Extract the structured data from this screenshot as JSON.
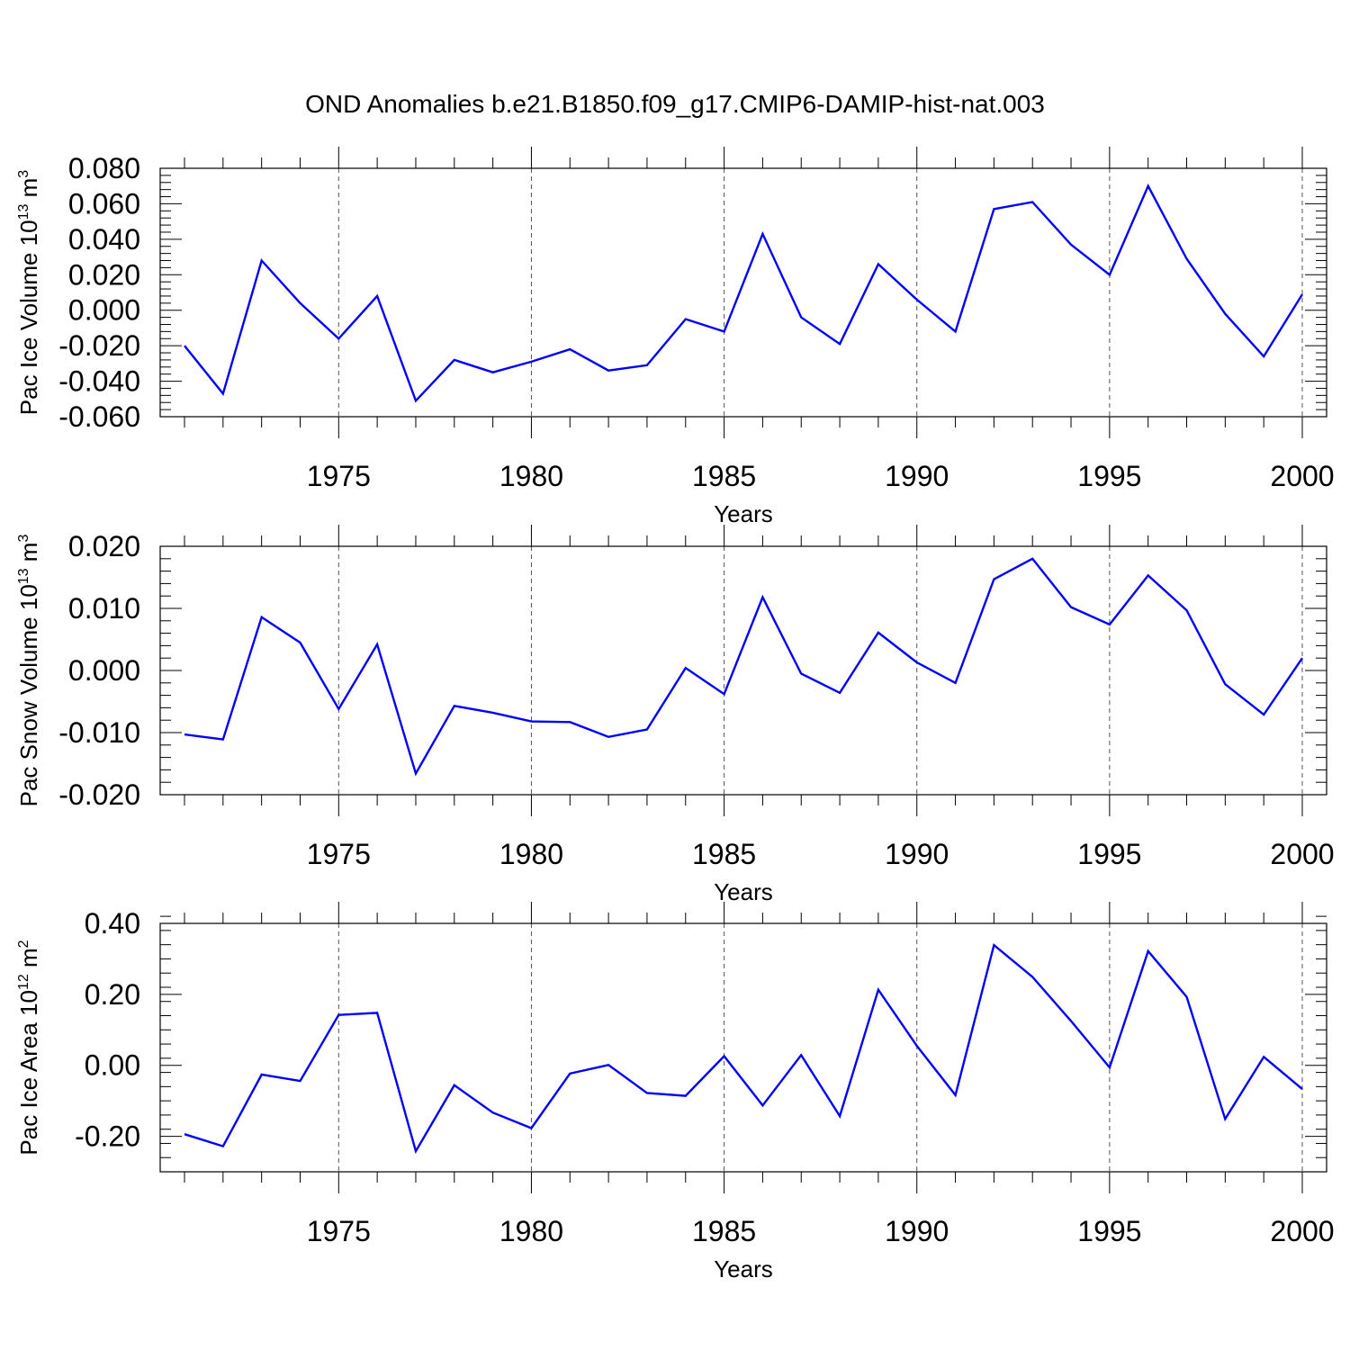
{
  "title": "OND Anomalies b.e21.B1850.f09_g17.CMIP6-DAMIP-hist-nat.003",
  "chart_data": [
    {
      "type": "line",
      "title": "OND Anomalies b.e21.B1850.f09_g17.CMIP6-DAMIP-hist-nat.003",
      "ylabel": {
        "text": "Pac Ice Volume 10",
        "exp": "13",
        "unit": " m",
        "unit_exp": "3"
      },
      "xlabel": "Years",
      "xlim": [
        1971,
        2000
      ],
      "ylim": [
        -0.06,
        0.08
      ],
      "yticks": [
        -0.06,
        -0.04,
        -0.02,
        0.0,
        0.02,
        0.04,
        0.06,
        0.08
      ],
      "ytick_labels": [
        "-0.060",
        "-0.040",
        "-0.020",
        "0.000",
        "0.020",
        "0.040",
        "0.060",
        "0.080"
      ],
      "xticks": [
        1975,
        1980,
        1985,
        1990,
        1995,
        2000
      ],
      "xtick_labels": [
        "1975",
        "1980",
        "1985",
        "1990",
        "1995",
        "2000"
      ],
      "grid": "dashed vertical at major x ticks",
      "color": "#0000ff",
      "x": [
        1971,
        1972,
        1973,
        1974,
        1975,
        1976,
        1977,
        1978,
        1979,
        1980,
        1981,
        1982,
        1983,
        1984,
        1985,
        1986,
        1987,
        1988,
        1989,
        1990,
        1991,
        1992,
        1993,
        1994,
        1995,
        1996,
        1997,
        1998,
        1999,
        2000
      ],
      "values": [
        -0.02,
        -0.047,
        0.028,
        0.004,
        -0.016,
        0.008,
        -0.051,
        -0.028,
        -0.035,
        -0.029,
        -0.022,
        -0.034,
        -0.031,
        -0.005,
        -0.012,
        0.043,
        -0.004,
        -0.019,
        0.026,
        0.006,
        -0.012,
        0.057,
        0.061,
        0.037,
        0.02,
        0.07,
        0.029,
        -0.002,
        -0.026,
        0.009
      ]
    },
    {
      "type": "line",
      "ylabel": {
        "text": "Pac Snow Volume 10",
        "exp": "13",
        "unit": " m",
        "unit_exp": "3"
      },
      "xlabel": "Years",
      "xlim": [
        1971,
        2000
      ],
      "ylim": [
        -0.02,
        0.02
      ],
      "yticks": [
        -0.02,
        -0.01,
        0.0,
        0.01,
        0.02
      ],
      "ytick_labels": [
        "-0.020",
        "-0.010",
        "0.000",
        "0.010",
        "0.020"
      ],
      "xticks": [
        1975,
        1980,
        1985,
        1990,
        1995,
        2000
      ],
      "xtick_labels": [
        "1975",
        "1980",
        "1985",
        "1990",
        "1995",
        "2000"
      ],
      "grid": "dashed vertical at major x ticks",
      "color": "#0000ff",
      "x": [
        1971,
        1972,
        1973,
        1974,
        1975,
        1976,
        1977,
        1978,
        1979,
        1980,
        1981,
        1982,
        1983,
        1984,
        1985,
        1986,
        1987,
        1988,
        1989,
        1990,
        1991,
        1992,
        1993,
        1994,
        1995,
        1996,
        1997,
        1998,
        1999,
        2000
      ],
      "values": [
        -0.0103,
        -0.0111,
        0.0086,
        0.0045,
        -0.0062,
        0.0042,
        -0.0166,
        -0.0057,
        -0.0068,
        -0.0082,
        -0.0083,
        -0.0107,
        -0.0095,
        0.0004,
        -0.0038,
        0.0118,
        -0.0005,
        -0.0036,
        0.0061,
        0.0013,
        -0.002,
        0.0147,
        0.018,
        0.0102,
        0.0074,
        0.0153,
        0.0097,
        -0.0022,
        -0.0071,
        0.002
      ]
    },
    {
      "type": "line",
      "ylabel": {
        "text": "Pac Ice Area 10",
        "exp": "12",
        "unit": " m",
        "unit_exp": "2"
      },
      "xlabel": "Years",
      "xlim": [
        1971,
        2000
      ],
      "ylim": [
        -0.3,
        0.4
      ],
      "yticks": [
        -0.2,
        0.0,
        0.2,
        0.4
      ],
      "ytick_labels": [
        "-0.20",
        "0.00",
        "0.20",
        "0.40"
      ],
      "xticks": [
        1975,
        1980,
        1985,
        1990,
        1995,
        2000
      ],
      "xtick_labels": [
        "1975",
        "1980",
        "1985",
        "1990",
        "1995",
        "2000"
      ],
      "grid": "dashed vertical at major x ticks",
      "color": "#0000ff",
      "x": [
        1971,
        1972,
        1973,
        1974,
        1975,
        1976,
        1977,
        1978,
        1979,
        1980,
        1981,
        1982,
        1983,
        1984,
        1985,
        1986,
        1987,
        1988,
        1989,
        1990,
        1991,
        1992,
        1993,
        1994,
        1995,
        1996,
        1997,
        1998,
        1999,
        2000
      ],
      "values": [
        -0.194,
        -0.228,
        -0.026,
        -0.044,
        0.142,
        0.148,
        -0.242,
        -0.056,
        -0.133,
        -0.177,
        -0.023,
        0.001,
        -0.078,
        -0.086,
        0.026,
        -0.113,
        0.029,
        -0.143,
        0.213,
        0.055,
        -0.084,
        0.339,
        0.249,
        0.125,
        -0.006,
        0.322,
        0.193,
        -0.151,
        0.024,
        -0.067
      ]
    }
  ]
}
